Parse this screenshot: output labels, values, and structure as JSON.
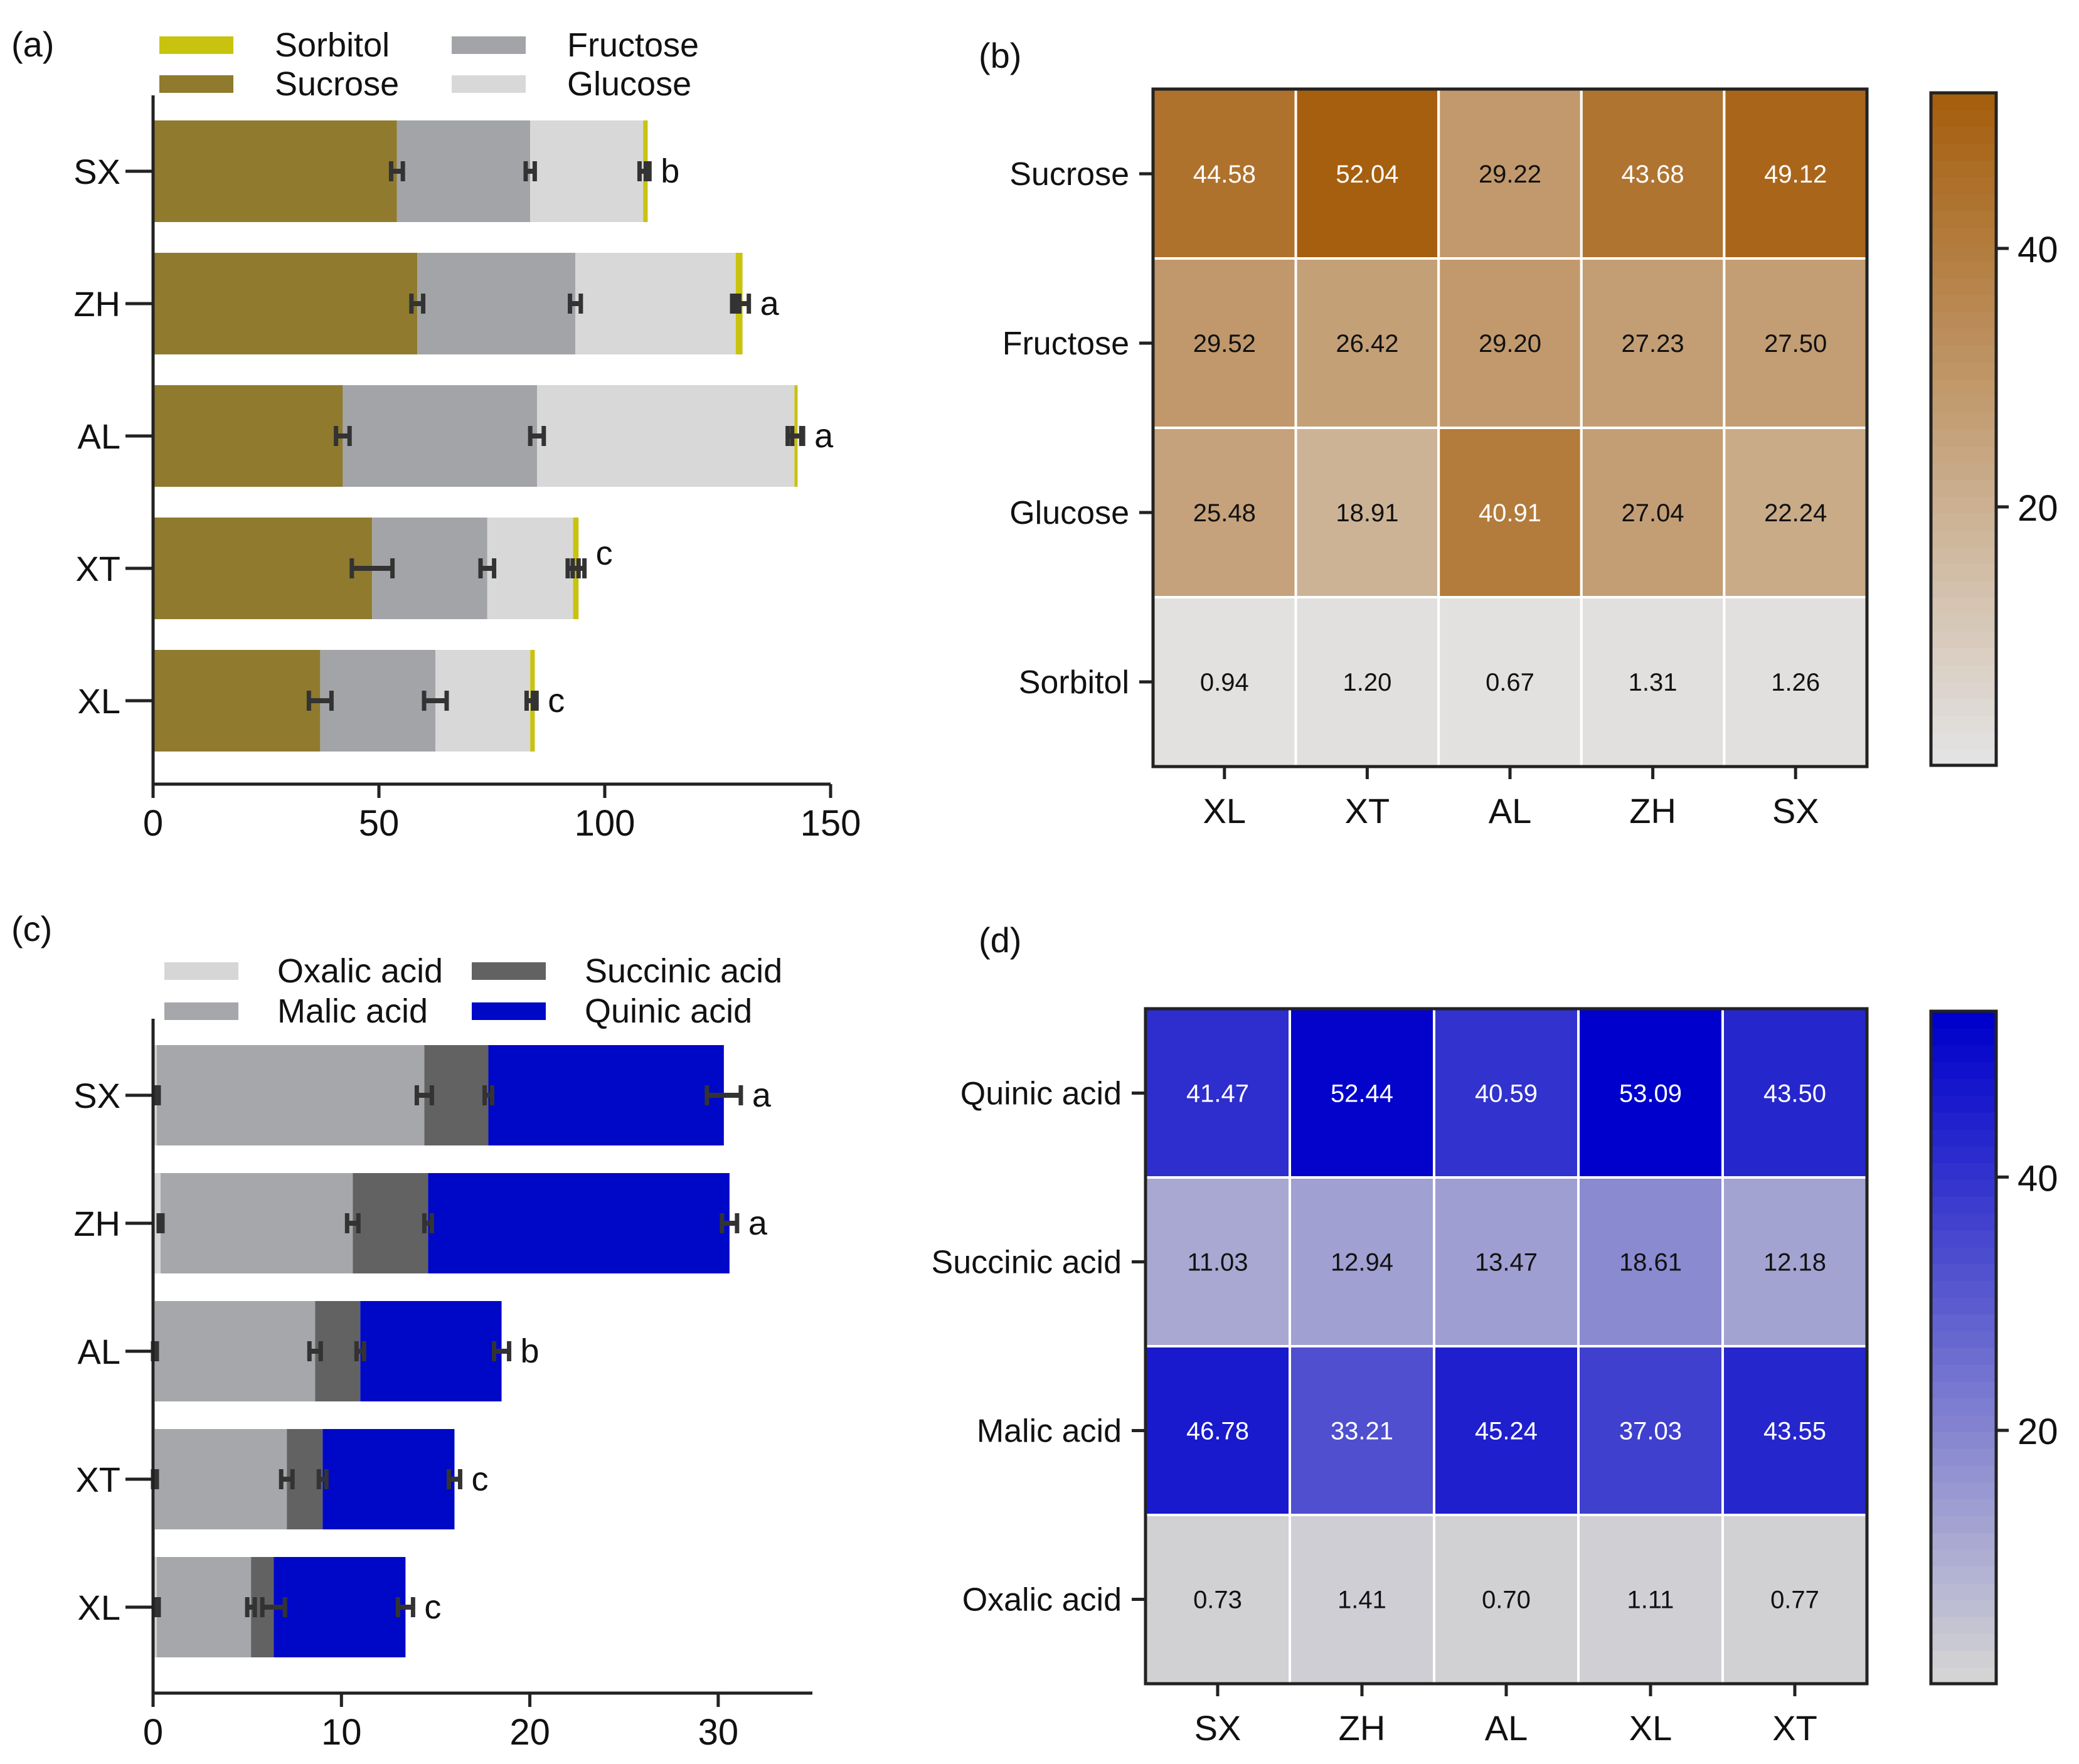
{
  "chart_data": [
    {
      "panel": "(a)",
      "type": "bar",
      "orientation": "horizontal",
      "stacked": true,
      "categories": [
        "SX",
        "ZH",
        "AL",
        "XT",
        "XL"
      ],
      "series": [
        {
          "name": "Sucrose",
          "values": [
            54,
            58.5,
            42,
            48.5,
            37
          ],
          "error": [
            1.3,
            1.3,
            1.5,
            4.5,
            2.5
          ]
        },
        {
          "name": "Fructose",
          "values": [
            29.5,
            35,
            43,
            25.5,
            25.5
          ],
          "error": [
            1,
            1.2,
            1.5,
            1.5,
            2.5
          ]
        },
        {
          "name": "Glucose",
          "values": [
            25,
            35.5,
            57,
            19,
            21
          ],
          "error": [
            0.8,
            0.8,
            1.5,
            1.2,
            0.8
          ]
        },
        {
          "name": "Sorbitol",
          "values": [
            1,
            1.5,
            0.7,
            1.2,
            1
          ],
          "error": [
            0.4,
            1.4,
            1.2,
            1.3,
            0.4
          ]
        }
      ],
      "letters": [
        "b",
        "a",
        "a",
        "c",
        "c"
      ],
      "legend": [
        "Sorbitol",
        "Fructose",
        "Sucrose",
        "Glucose"
      ],
      "xlim": [
        0,
        150
      ],
      "xticks": [
        "0",
        "50",
        "100",
        "150"
      ],
      "colors": {
        "Sucrose": "#8f7a2e",
        "Fructose": "#a3a4a8",
        "Glucose": "#d8d8d8",
        "Sorbitol": "#c8c30e"
      }
    },
    {
      "panel": "(b)",
      "type": "heatmap",
      "rows": [
        "Sucrose",
        "Fructose",
        "Glucose",
        "Sorbitol"
      ],
      "columns": [
        "XL",
        "XT",
        "AL",
        "ZH",
        "SX"
      ],
      "values": [
        [
          44.58,
          52.04,
          29.22,
          43.68,
          49.12
        ],
        [
          29.52,
          26.42,
          29.2,
          27.23,
          27.5
        ],
        [
          25.48,
          18.91,
          40.91,
          27.04,
          22.24
        ],
        [
          0.94,
          1.2,
          0.67,
          1.31,
          1.26
        ]
      ],
      "labels": [
        [
          "44.58",
          "52.04",
          "29.22",
          "43.68",
          "49.12"
        ],
        [
          "29.52",
          "26.42",
          "29.20",
          "27.23",
          "27.50"
        ],
        [
          "25.48",
          "18.91",
          "40.91",
          "27.04",
          "22.24"
        ],
        [
          "0.94",
          "1.20",
          "0.67",
          "1.31",
          "1.26"
        ]
      ],
      "colorbar": {
        "min": 0,
        "max": 52.04,
        "ticks": [
          "20",
          "40"
        ],
        "low_color": "#e3e3e3",
        "high_color": "#a65f0f"
      }
    },
    {
      "panel": "(c)",
      "type": "bar",
      "orientation": "horizontal",
      "stacked": true,
      "categories": [
        "SX",
        "ZH",
        "AL",
        "XT",
        "XL"
      ],
      "series": [
        {
          "name": "Oxalic acid",
          "values": [
            0.2,
            0.4,
            0.1,
            0.1,
            0.2
          ],
          "error": [
            0.1,
            0.1,
            0.1,
            0.1,
            0.1
          ]
        },
        {
          "name": "Malic acid",
          "values": [
            14.2,
            10.2,
            8.5,
            7,
            5
          ],
          "error": [
            0.4,
            0.3,
            0.3,
            0.3,
            0.2
          ]
        },
        {
          "name": "Succinic acid",
          "values": [
            3.4,
            4,
            2.4,
            1.9,
            1.2
          ],
          "error": [
            0.2,
            0.2,
            0.2,
            0.2,
            0.6
          ]
        },
        {
          "name": "Quinic acid",
          "values": [
            12.5,
            16,
            7.5,
            7,
            7
          ],
          "error": [
            0.9,
            0.4,
            0.4,
            0.3,
            0.4
          ]
        }
      ],
      "letters": [
        "a",
        "a",
        "b",
        "c",
        "c"
      ],
      "legend": [
        "Oxalic acid",
        "Succinic acid",
        "Malic acid",
        "Quinic acid"
      ],
      "xlim": [
        0,
        35
      ],
      "xticks": [
        "0",
        "10",
        "20",
        "30"
      ],
      "colors": {
        "Oxalic acid": "#d6d6d6",
        "Malic acid": "#a6a7aa",
        "Succinic acid": "#626262",
        "Quinic acid": "#0008c8"
      }
    },
    {
      "panel": "(d)",
      "type": "heatmap",
      "rows": [
        "Quinic acid",
        "Succinic acid",
        "Malic acid",
        "Oxalic acid"
      ],
      "columns": [
        "SX",
        "ZH",
        "AL",
        "XL",
        "XT"
      ],
      "values": [
        [
          41.47,
          52.44,
          40.59,
          53.09,
          43.5
        ],
        [
          11.03,
          12.94,
          13.47,
          18.61,
          12.18
        ],
        [
          46.78,
          33.21,
          45.24,
          37.03,
          43.55
        ],
        [
          0.73,
          1.41,
          0.7,
          1.11,
          0.77
        ]
      ],
      "labels": [
        [
          "41.47",
          "52.44",
          "40.59",
          "53.09",
          "43.50"
        ],
        [
          "11.03",
          "12.94",
          "13.47",
          "18.61",
          "12.18"
        ],
        [
          "46.78",
          "33.21",
          "45.24",
          "37.03",
          "43.55"
        ],
        [
          "0.73",
          "1.41",
          "0.70",
          "1.11",
          "0.77"
        ]
      ],
      "colorbar": {
        "min": 0,
        "max": 53.09,
        "ticks": [
          "20",
          "40"
        ],
        "low_color": "#d4d4d4",
        "high_color": "#0000cc"
      }
    }
  ]
}
